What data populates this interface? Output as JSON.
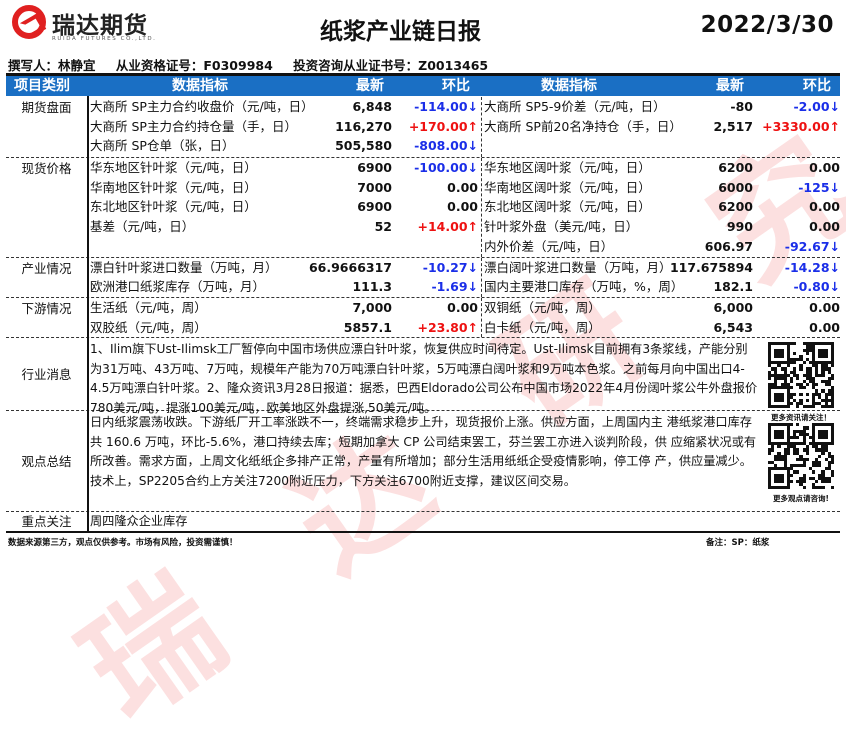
{
  "logo": {
    "cn": "瑞达期货",
    "en": "RUIDA FUTURES CO.,LTD."
  },
  "title": "纸浆产业链日报",
  "date": "2022/3/30",
  "author": {
    "writer": "撰写人：林静宜",
    "qualification": "从业资格证号：F0309984",
    "consult": "投资咨询从业证书号：Z0013465"
  },
  "header": {
    "category": "项目类别",
    "indicator": "数据指标",
    "latest": "最新",
    "change": "环比",
    "indicator2": "数据指标",
    "latest2": "最新",
    "change2": "环比"
  },
  "colors": {
    "header_bg": "#1a6fc4",
    "up": "#ee1111",
    "down": "#1a2ee8",
    "watermark": "#eb3c3c"
  },
  "sections": [
    {
      "category": "期货盘面",
      "rows": [
        {
          "l": {
            "name": "大商所 SP主力合约收盘价（元/吨，日）",
            "latest": "6,848",
            "change": "-114.00↓",
            "dir": "down"
          },
          "r": {
            "name": "大商所 SP5-9价差（元/吨，日）",
            "latest": "-80",
            "change": "-2.00↓",
            "dir": "down"
          }
        },
        {
          "l": {
            "name": "大商所 SP主力合约持仓量（手，日）",
            "latest": "116,270",
            "change": "+170.00↑",
            "dir": "up"
          },
          "r": {
            "name": "大商所 SP前20名净持仓（手，日）",
            "latest": "2,517",
            "change": "+3330.00↑",
            "dir": "up"
          }
        },
        {
          "l": {
            "name": "大商所 SP仓单（张，日）",
            "latest": "505,580",
            "change": "-808.00↓",
            "dir": "down"
          },
          "r": null
        }
      ]
    },
    {
      "category": "现货价格",
      "rows": [
        {
          "l": {
            "name": "华东地区针叶浆（元/吨，日）",
            "latest": "6900",
            "change": "-100.00↓",
            "dir": "down"
          },
          "r": {
            "name": "华东地区阔叶浆（元/吨，日）",
            "latest": "6200",
            "change": "0.00",
            "dir": "flat"
          }
        },
        {
          "l": {
            "name": "华南地区针叶浆（元/吨，日）",
            "latest": "7000",
            "change": "0.00",
            "dir": "flat"
          },
          "r": {
            "name": "华南地区阔叶浆（元/吨，日）",
            "latest": "6000",
            "change": "-125↓",
            "dir": "down"
          }
        },
        {
          "l": {
            "name": "东北地区针叶浆（元/吨，日）",
            "latest": "6900",
            "change": "0.00",
            "dir": "flat"
          },
          "r": {
            "name": "东北地区阔叶浆（元/吨，日）",
            "latest": "6200",
            "change": "0.00",
            "dir": "flat"
          }
        },
        {
          "l": {
            "name": "基差（元/吨，日）",
            "latest": "52",
            "change": "+14.00↑",
            "dir": "up"
          },
          "r": {
            "name": "针叶浆外盘（美元/吨，日）",
            "latest": "990",
            "change": "0.00",
            "dir": "flat"
          }
        },
        {
          "l": null,
          "r": {
            "name": "内外价差（元/吨，日）",
            "latest": "606.97",
            "change": "-92.67↓",
            "dir": "down"
          }
        }
      ]
    },
    {
      "category": "产业情况",
      "rows": [
        {
          "l": {
            "name": "漂白针叶浆进口数量（万吨，月）",
            "latest": "66.9666317",
            "change": "-10.27↓",
            "dir": "down"
          },
          "r": {
            "name": "漂白阔叶浆进口数量（万吨，月）",
            "latest": "117.675894",
            "change": "-14.28↓",
            "dir": "down"
          }
        },
        {
          "l": {
            "name": "欧洲港口纸浆库存（万吨，月）",
            "latest": "111.3",
            "change": "-1.69↓",
            "dir": "down"
          },
          "r": {
            "name": "国内主要港口库存（万吨，%，周）",
            "latest": "182.1",
            "change": "-0.80↓",
            "dir": "down"
          }
        }
      ]
    },
    {
      "category": "下游情况",
      "rows": [
        {
          "l": {
            "name": "生活纸（元/吨，周）",
            "latest": "7,000",
            "change": "0.00",
            "dir": "flat"
          },
          "r": {
            "name": "双铜纸（元/吨，周）",
            "latest": "6,000",
            "change": "0.00",
            "dir": "flat"
          }
        },
        {
          "l": {
            "name": "双胶纸（元/吨，周）",
            "latest": "5857.1",
            "change": "+23.80↑",
            "dir": "up"
          },
          "r": {
            "name": "白卡纸（元/吨，周）",
            "latest": "6,543",
            "change": "0.00",
            "dir": "flat"
          }
        }
      ]
    }
  ],
  "news": {
    "category": "行业消息",
    "text": "1、Ilim旗下Ust-Ilimsk工厂暂停向中国市场供应漂白针叶浆，恢复供应时间待定。Ust-Ilimsk目前拥有3条浆线，产能分别为31万吨、43万吨、7万吨，规模年产能为70万吨漂白针叶浆，5万吨漂白阔叶浆和9万吨本色浆。之前每月向中国出口4-4.5万吨漂白针叶浆。2、隆众资讯3月28日报道：据悉，巴西Eldorado公司公布中国市场2022年4月份阔叶浆公牛外盘报价780美元/吨，提涨100美元/吨，欧美地区外盘提涨,50美元/吨。",
    "qr_caption": "更多资讯请关注！"
  },
  "view": {
    "category": "观点总结",
    "text": "日内纸浆震荡收跌。下游纸厂开工率涨跌不一，终端需求稳步上升，现货报价上涨。供应方面，上周国内主 港纸浆港口库存共 160.6 万吨，环比-5.6%，港口持续去库；短期加拿大 CP 公司结束罢工，芬兰罢工亦进入谈判阶段，供 应缩紧状况或有所改善。需求方面，上周文化纸纸企多排产正常，产量有所增加；部分生活用纸纸企受疫情影响，停工停 产，供应量减少。技术上，SP2205合约上方关注7200附近压力，下方关注6700附近支撑，建议区间交易。",
    "qr_caption": "更多观点请咨询!"
  },
  "focus": {
    "category": "重点关注",
    "text": "周四隆众企业库存"
  },
  "footer": {
    "disclaimer": "数据来源第三方，观点仅供参考。市场有风险，投资需谨慎！",
    "note": "备注：SP：纸浆"
  },
  "watermark": "瑞达研究"
}
